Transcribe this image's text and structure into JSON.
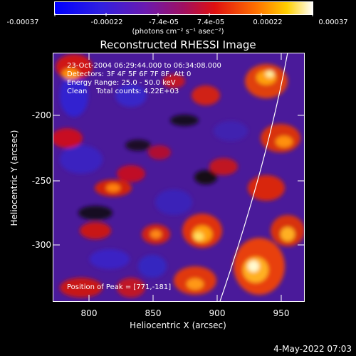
{
  "colorbar": {
    "ticks": [
      "-0.00037",
      "-0.00022",
      "-7.4e-05",
      "7.4e-05",
      "0.00022",
      "0.00037"
    ],
    "unit_label": "(photons cm⁻² s⁻¹ asec⁻²)"
  },
  "title": "Reconstructed RHESSI Image",
  "axes": {
    "xlabel": "Heliocentric X (arcsec)",
    "ylabel": "Heliocentric Y (arcsec)",
    "xticks": [
      "800",
      "850",
      "900",
      "950"
    ],
    "yticks": [
      "-200",
      "-250",
      "-300"
    ]
  },
  "info": {
    "time_range": "23-Oct-2004 06:29:44.000 to 06:34:08.000",
    "detectors": "Detectors: 3F 4F 5F 6F 7F 8F, Att 0",
    "energy": "Energy Range: 25.0 - 50.0 keV",
    "clean": "Clean    Total counts: 4.22E+03",
    "peak": "Position of Peak = [771,-181]"
  },
  "date_stamp": "4-May-2022 07:03",
  "colors": {
    "background": "#000000",
    "image_base": "#4a1a9a",
    "limb_line": "#ffffff"
  }
}
